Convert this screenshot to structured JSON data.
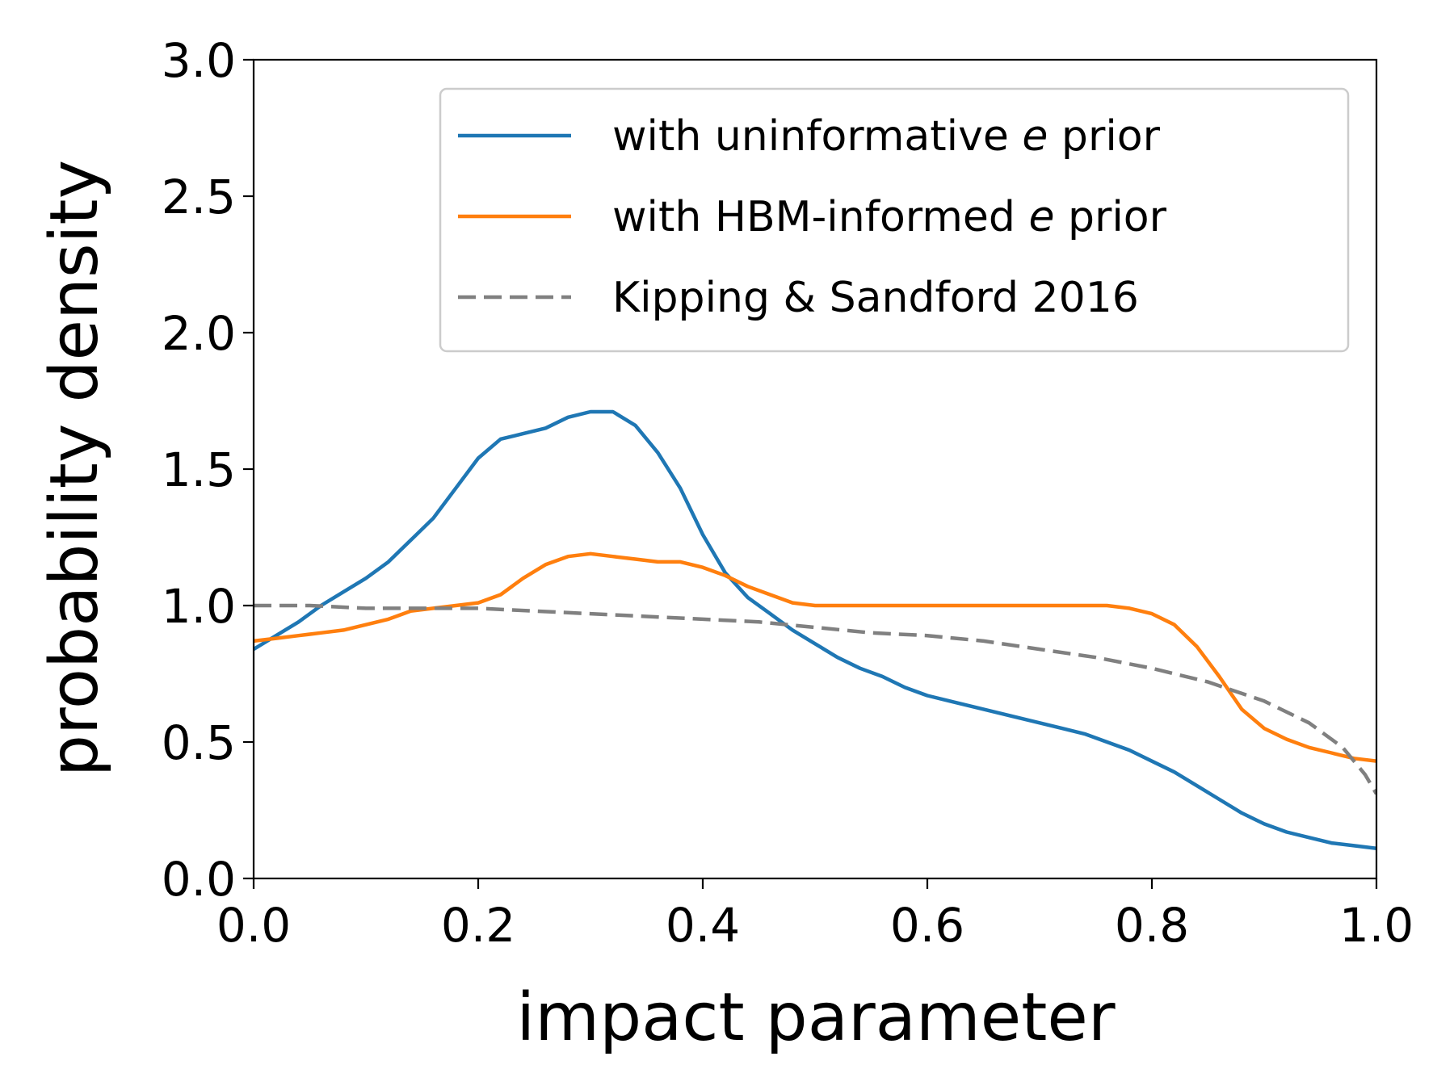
{
  "chart_data": {
    "type": "line",
    "xlabel": "impact parameter",
    "ylabel": "probability density",
    "xlim": [
      0.0,
      1.0
    ],
    "ylim": [
      0.0,
      3.0
    ],
    "xticks": [
      "0.0",
      "0.2",
      "0.4",
      "0.6",
      "0.8",
      "1.0"
    ],
    "yticks": [
      "0.0",
      "0.5",
      "1.0",
      "1.5",
      "2.0",
      "2.5",
      "3.0"
    ],
    "grid": false,
    "legend_position": "top-right",
    "series": [
      {
        "name": "with uninformative e prior",
        "legend_prefix": "with uninformative ",
        "legend_italic": "e",
        "legend_suffix": " prior",
        "color": "#1f77b4",
        "dash": "solid",
        "x": [
          0.0,
          0.02,
          0.04,
          0.06,
          0.08,
          0.1,
          0.12,
          0.14,
          0.16,
          0.18,
          0.2,
          0.22,
          0.24,
          0.26,
          0.28,
          0.3,
          0.32,
          0.34,
          0.36,
          0.38,
          0.4,
          0.42,
          0.44,
          0.46,
          0.48,
          0.5,
          0.52,
          0.54,
          0.56,
          0.58,
          0.6,
          0.62,
          0.64,
          0.66,
          0.68,
          0.7,
          0.72,
          0.74,
          0.76,
          0.78,
          0.8,
          0.82,
          0.84,
          0.86,
          0.88,
          0.9,
          0.92,
          0.94,
          0.96,
          0.98,
          1.0
        ],
        "y": [
          0.84,
          0.89,
          0.94,
          1.0,
          1.05,
          1.1,
          1.16,
          1.24,
          1.32,
          1.43,
          1.54,
          1.61,
          1.63,
          1.65,
          1.69,
          1.71,
          1.71,
          1.66,
          1.56,
          1.43,
          1.26,
          1.12,
          1.03,
          0.97,
          0.91,
          0.86,
          0.81,
          0.77,
          0.74,
          0.7,
          0.67,
          0.65,
          0.63,
          0.61,
          0.59,
          0.57,
          0.55,
          0.53,
          0.5,
          0.47,
          0.43,
          0.39,
          0.34,
          0.29,
          0.24,
          0.2,
          0.17,
          0.15,
          0.13,
          0.12,
          0.11
        ]
      },
      {
        "name": "with HBM-informed e prior",
        "legend_prefix": "with HBM-informed ",
        "legend_italic": "e",
        "legend_suffix": " prior",
        "color": "#ff7f0e",
        "dash": "solid",
        "x": [
          0.0,
          0.02,
          0.04,
          0.06,
          0.08,
          0.1,
          0.12,
          0.14,
          0.16,
          0.18,
          0.2,
          0.22,
          0.24,
          0.26,
          0.28,
          0.3,
          0.32,
          0.34,
          0.36,
          0.38,
          0.4,
          0.42,
          0.44,
          0.46,
          0.48,
          0.5,
          0.52,
          0.54,
          0.56,
          0.58,
          0.6,
          0.62,
          0.64,
          0.66,
          0.68,
          0.7,
          0.72,
          0.74,
          0.76,
          0.78,
          0.8,
          0.82,
          0.84,
          0.86,
          0.88,
          0.9,
          0.92,
          0.94,
          0.96,
          0.98,
          1.0
        ],
        "y": [
          0.87,
          0.88,
          0.89,
          0.9,
          0.91,
          0.93,
          0.95,
          0.98,
          0.99,
          1.0,
          1.01,
          1.04,
          1.1,
          1.15,
          1.18,
          1.19,
          1.18,
          1.17,
          1.16,
          1.16,
          1.14,
          1.11,
          1.07,
          1.04,
          1.01,
          1.0,
          1.0,
          1.0,
          1.0,
          1.0,
          1.0,
          1.0,
          1.0,
          1.0,
          1.0,
          1.0,
          1.0,
          1.0,
          1.0,
          0.99,
          0.97,
          0.93,
          0.85,
          0.74,
          0.62,
          0.55,
          0.51,
          0.48,
          0.46,
          0.44,
          0.43
        ]
      },
      {
        "name": "Kipping & Sandford 2016",
        "legend_prefix": "Kipping & Sandford 2016",
        "legend_italic": "",
        "legend_suffix": "",
        "color": "#808080",
        "dash": "dashed",
        "x": [
          0.0,
          0.05,
          0.1,
          0.15,
          0.2,
          0.25,
          0.3,
          0.35,
          0.4,
          0.45,
          0.5,
          0.55,
          0.6,
          0.65,
          0.7,
          0.75,
          0.8,
          0.85,
          0.9,
          0.94,
          0.97,
          0.99,
          1.0
        ],
        "y": [
          1.0,
          1.0,
          0.99,
          0.99,
          0.99,
          0.98,
          0.97,
          0.96,
          0.95,
          0.94,
          0.92,
          0.9,
          0.89,
          0.87,
          0.84,
          0.81,
          0.77,
          0.72,
          0.65,
          0.57,
          0.48,
          0.38,
          0.31
        ]
      }
    ]
  }
}
